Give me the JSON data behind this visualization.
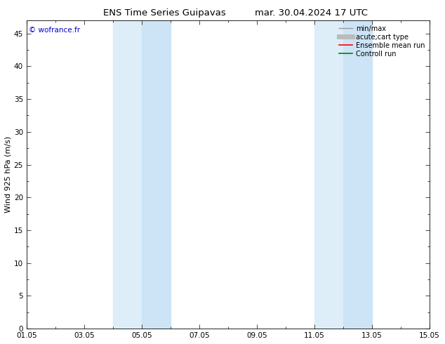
{
  "title": "ENS Time Series Guipavas",
  "title_date": "mar. 30.04.2024 17 UTC",
  "ylabel": "Wind 925 hPa (m/s)",
  "watermark": "© wofrance.fr",
  "xtick_labels": [
    "01.05",
    "03.05",
    "05.05",
    "07.05",
    "09.05",
    "11.05",
    "13.05",
    "15.05"
  ],
  "xtick_positions": [
    0,
    2,
    4,
    6,
    8,
    10,
    12,
    14
  ],
  "xlim": [
    0,
    14
  ],
  "ylim": [
    0,
    47
  ],
  "ytick_positions": [
    0,
    5,
    10,
    15,
    20,
    25,
    30,
    35,
    40,
    45
  ],
  "ytick_labels": [
    "0",
    "5",
    "10",
    "15",
    "20",
    "25",
    "30",
    "35",
    "40",
    "45"
  ],
  "shaded_bands": [
    {
      "xstart": 3.0,
      "xend": 4.0,
      "color": "#ddeef8"
    },
    {
      "xstart": 4.0,
      "xend": 5.0,
      "color": "#cce4f5"
    },
    {
      "xstart": 10.0,
      "xend": 11.0,
      "color": "#ddeef8"
    },
    {
      "xstart": 11.0,
      "xend": 12.0,
      "color": "#cce4f5"
    }
  ],
  "legend_entries": [
    {
      "label": "min/max",
      "color": "#999999",
      "lw": 1.0,
      "linestyle": "-"
    },
    {
      "label": "acute;cart type",
      "color": "#bbbbbb",
      "lw": 5,
      "linestyle": "-"
    },
    {
      "label": "Ensemble mean run",
      "color": "red",
      "lw": 1.2,
      "linestyle": "-"
    },
    {
      "label": "Controll run",
      "color": "green",
      "lw": 1.2,
      "linestyle": "-"
    }
  ],
  "background_color": "#ffffff",
  "plot_bg_color": "#ffffff",
  "watermark_color": "#0000cc",
  "watermark_fontsize": 7.5,
  "title_fontsize": 9.5,
  "axis_label_fontsize": 8,
  "tick_fontsize": 7.5,
  "legend_fontsize": 7
}
